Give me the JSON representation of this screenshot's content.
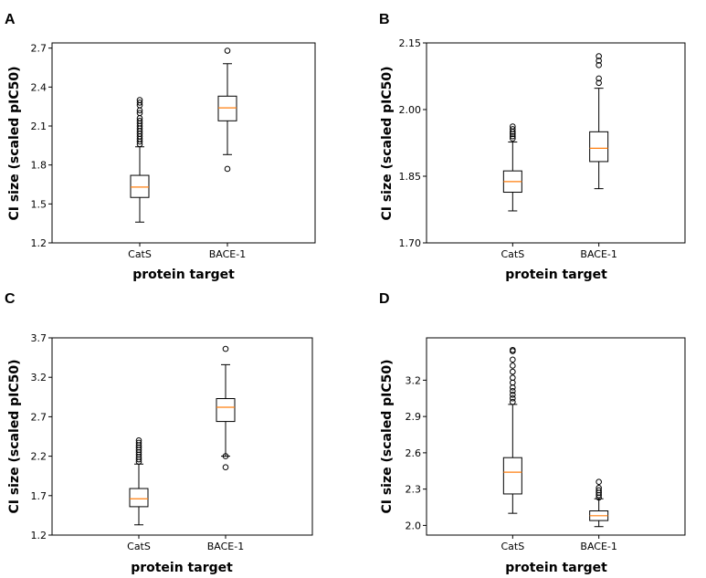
{
  "figure": {
    "xlabel": "protein target",
    "ylabel": "CI size (scaled pIC50)"
  },
  "chart_data": [
    {
      "panel": "A",
      "type": "box",
      "title": "",
      "xlabel": "protein target",
      "ylabel": "CI size (scaled pIC50)",
      "categories": [
        "CatS",
        "BACE-1"
      ],
      "ylim": [
        1.2,
        2.74
      ],
      "yticks": [
        1.2,
        1.5,
        1.8,
        2.1,
        2.4,
        2.7
      ],
      "ytick_labels": [
        "1.2",
        "1.5",
        "1.8",
        "2.1",
        "2.4",
        "2.7"
      ],
      "boxes": [
        {
          "category": "CatS",
          "whisker_low": 1.36,
          "q1": 1.55,
          "median": 1.63,
          "q3": 1.72,
          "whisker_high": 1.94,
          "outliers": [
            1.96,
            1.98,
            2.0,
            2.02,
            2.04,
            2.06,
            2.08,
            2.1,
            2.12,
            2.14,
            2.16,
            2.2,
            2.22,
            2.26,
            2.28,
            2.3
          ]
        },
        {
          "category": "BACE-1",
          "whisker_low": 1.88,
          "q1": 2.14,
          "median": 2.24,
          "q3": 2.33,
          "whisker_high": 2.58,
          "outliers": [
            1.77,
            2.68
          ]
        }
      ]
    },
    {
      "panel": "B",
      "type": "box",
      "title": "",
      "xlabel": "protein target",
      "ylabel": "CI size (scaled pIC50)",
      "categories": [
        "CatS",
        "BACE-1"
      ],
      "ylim": [
        1.7,
        2.15
      ],
      "yticks": [
        1.7,
        1.85,
        2.0,
        2.15
      ],
      "ytick_labels": [
        "1.70",
        "1.85",
        "2.00",
        "2.15"
      ],
      "boxes": [
        {
          "category": "CatS",
          "whisker_low": 1.772,
          "q1": 1.814,
          "median": 1.838,
          "q3": 1.862,
          "whisker_high": 1.927,
          "outliers": [
            1.935,
            1.94,
            1.945,
            1.95,
            1.956,
            1.962
          ]
        },
        {
          "category": "BACE-1",
          "whisker_low": 1.822,
          "q1": 1.883,
          "median": 1.913,
          "q3": 1.95,
          "whisker_high": 2.048,
          "outliers": [
            2.06,
            2.07,
            2.1,
            2.11,
            2.12
          ]
        }
      ]
    },
    {
      "panel": "C",
      "type": "box",
      "title": "",
      "xlabel": "protein target",
      "ylabel": "CI size (scaled pIC50)",
      "categories": [
        "CatS",
        "BACE-1"
      ],
      "ylim": [
        1.2,
        3.7
      ],
      "yticks": [
        1.2,
        1.7,
        2.2,
        2.7,
        3.2,
        3.7
      ],
      "ytick_labels": [
        "1.2",
        "1.7",
        "2.2",
        "2.7",
        "3.2",
        "3.7"
      ],
      "boxes": [
        {
          "category": "CatS",
          "whisker_low": 1.33,
          "q1": 1.56,
          "median": 1.66,
          "q3": 1.79,
          "whisker_high": 2.1,
          "outliers": [
            2.13,
            2.16,
            2.19,
            2.22,
            2.25,
            2.28,
            2.31,
            2.34,
            2.37,
            2.4
          ]
        },
        {
          "category": "BACE-1",
          "whisker_low": 2.2,
          "q1": 2.64,
          "median": 2.82,
          "q3": 2.93,
          "whisker_high": 3.36,
          "outliers": [
            2.06,
            2.2,
            3.56
          ]
        }
      ]
    },
    {
      "panel": "D",
      "type": "box",
      "title": "",
      "xlabel": "protein target",
      "ylabel": "CI size (scaled pIC50)",
      "categories": [
        "CatS",
        "BACE-1"
      ],
      "ylim": [
        1.92,
        3.55
      ],
      "yticks": [
        2.0,
        2.3,
        2.6,
        2.9,
        3.2
      ],
      "ytick_labels": [
        "2.0",
        "2.3",
        "2.6",
        "2.9",
        "3.2"
      ],
      "boxes": [
        {
          "category": "CatS",
          "whisker_low": 2.1,
          "q1": 2.26,
          "median": 2.44,
          "q3": 2.56,
          "whisker_high": 3.0,
          "outliers": [
            3.02,
            3.05,
            3.08,
            3.11,
            3.14,
            3.18,
            3.22,
            3.27,
            3.32,
            3.37,
            3.44,
            3.45
          ]
        },
        {
          "category": "BACE-1",
          "whisker_low": 1.99,
          "q1": 2.04,
          "median": 2.08,
          "q3": 2.12,
          "whisker_high": 2.22,
          "outliers": [
            2.23,
            2.25,
            2.27,
            2.29,
            2.31,
            2.36
          ]
        }
      ]
    }
  ]
}
